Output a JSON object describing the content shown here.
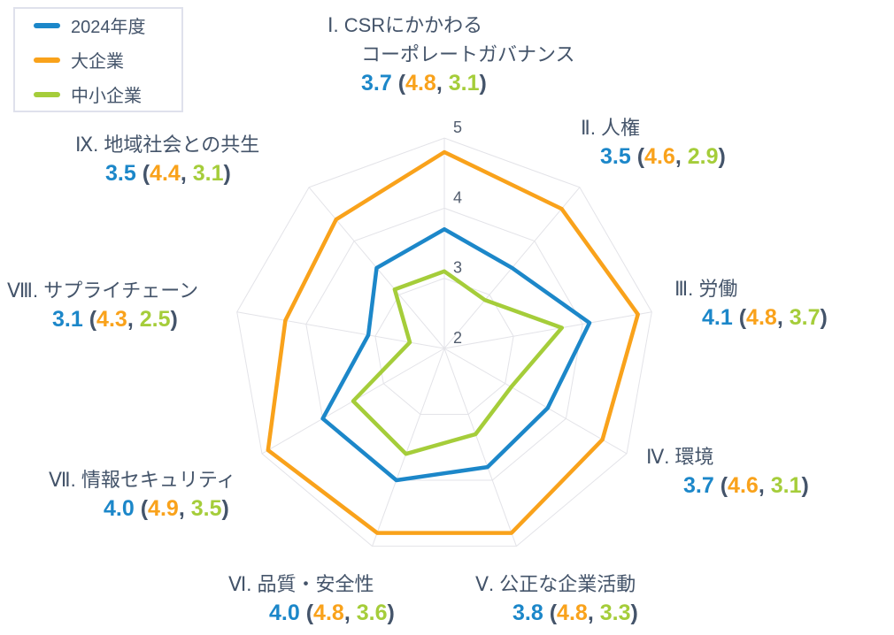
{
  "colors": {
    "y2024": "#1c87c9",
    "large": "#f9a21b",
    "sme": "#a5cd3a",
    "text": "#44546a",
    "tick": "#525d6e",
    "grid": "#e3e3e8"
  },
  "punct": {
    "open": " (",
    "comma": ", ",
    "close": ")"
  },
  "legend": {
    "items": [
      {
        "label": "2024年度",
        "color_key": "y2024"
      },
      {
        "label": "大企業",
        "color_key": "large"
      },
      {
        "label": "中小企業",
        "color_key": "sme"
      }
    ]
  },
  "chart_data": {
    "type": "radar",
    "categories": [
      "Ⅰ. CSRにかかわるコーポレートガバナンス",
      "Ⅱ. 人権",
      "Ⅲ. 労働",
      "Ⅳ. 環境",
      "Ⅴ. 公正な企業活動",
      "Ⅵ. 品質・安全性",
      "Ⅶ. 情報セキュリティ",
      "Ⅷ. サプライチェーン",
      "Ⅸ. 地域社会との共生"
    ],
    "series": [
      {
        "name": "2024年度",
        "color": "#1c87c9",
        "values": [
          3.7,
          3.5,
          4.1,
          3.7,
          3.8,
          4.0,
          4.0,
          3.1,
          3.5
        ]
      },
      {
        "name": "大企業",
        "color": "#f9a21b",
        "values": [
          4.8,
          4.6,
          4.8,
          4.6,
          4.8,
          4.8,
          4.9,
          4.3,
          4.4
        ]
      },
      {
        "name": "中小企業",
        "color": "#a5cd3a",
        "values": [
          3.1,
          2.9,
          3.7,
          3.1,
          3.3,
          3.6,
          3.5,
          2.5,
          3.1
        ]
      }
    ],
    "radial_min": 2,
    "radial_max": 5,
    "ticks": [
      2,
      3,
      4,
      5
    ],
    "grid_rings": [
      3,
      4,
      5
    ],
    "grid": true,
    "legend_position": "top-left",
    "draw_order": [
      "大企業",
      "2024年度",
      "中小企業"
    ]
  },
  "labels": [
    {
      "line1": "Ⅰ. CSRにかかわる",
      "line2": "コーポレートガバナンス",
      "v1": "3.7",
      "v2": "4.8",
      "v3": "3.1"
    },
    {
      "line1": "Ⅱ. 人権",
      "v1": "3.5",
      "v2": "4.6",
      "v3": "2.9"
    },
    {
      "line1": "Ⅲ. 労働",
      "v1": "4.1",
      "v2": "4.8",
      "v3": "3.7"
    },
    {
      "line1": "Ⅳ. 環境",
      "v1": "3.7",
      "v2": "4.6",
      "v3": "3.1"
    },
    {
      "line1": "Ⅴ. 公正な企業活動",
      "v1": "3.8",
      "v2": "4.8",
      "v3": "3.3"
    },
    {
      "line1": "Ⅵ. 品質・安全性",
      "v1": "4.0",
      "v2": "4.8",
      "v3": "3.6"
    },
    {
      "line1": "Ⅶ. 情報セキュリティ",
      "v1": "4.0",
      "v2": "4.9",
      "v3": "3.5"
    },
    {
      "line1": "Ⅷ. サプライチェーン",
      "v1": "3.1",
      "v2": "4.3",
      "v3": "2.5"
    },
    {
      "line1": "Ⅸ. 地域社会との共生",
      "v1": "3.5",
      "v2": "4.4",
      "v3": "3.1"
    }
  ]
}
